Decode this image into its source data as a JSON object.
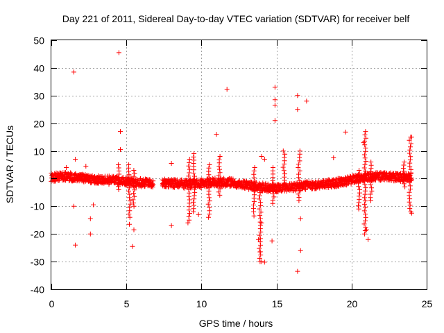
{
  "chart_data": {
    "type": "scatter",
    "title": "Day 221 of 2011, Sidereal Day-to-day VTEC variation (SDTVAR) for receiver belf",
    "xlabel": "GPS time / hours",
    "ylabel": "SDTVAR / TECUs",
    "xlim": [
      0,
      25
    ],
    "ylim": [
      -40,
      50
    ],
    "xticks": [
      0,
      5,
      10,
      15,
      20,
      25
    ],
    "yticks": [
      -40,
      -30,
      -20,
      -10,
      0,
      10,
      20,
      30,
      40,
      50
    ],
    "grid": true,
    "marker": "plus",
    "color": "#ff0000",
    "band": {
      "description": "dense cluster of points",
      "segments": [
        [
          0,
          6.8
        ],
        [
          7.4,
          24.0
        ]
      ],
      "center_profile": [
        [
          0,
          0.5
        ],
        [
          1,
          0.8
        ],
        [
          2,
          0.2
        ],
        [
          3,
          -0.3
        ],
        [
          4,
          -0.6
        ],
        [
          5,
          -1.0
        ],
        [
          6,
          -1.5
        ],
        [
          6.8,
          -1.8
        ],
        [
          7.4,
          -1.5
        ],
        [
          9,
          -2.0
        ],
        [
          10,
          -1.8
        ],
        [
          11,
          -1.2
        ],
        [
          12,
          -1.5
        ],
        [
          13,
          -2.5
        ],
        [
          14,
          -3.0
        ],
        [
          15,
          -3.5
        ],
        [
          16,
          -3.0
        ],
        [
          17,
          -2.5
        ],
        [
          18,
          -2.0
        ],
        [
          19,
          -1.5
        ],
        [
          20,
          -0.5
        ],
        [
          21,
          0.5
        ],
        [
          22,
          0.8
        ],
        [
          23,
          0.5
        ],
        [
          24,
          0.3
        ]
      ],
      "half_width_tecu": 1.5
    },
    "spikes": [
      {
        "x": 4.5,
        "min": -4,
        "max": 5
      },
      {
        "x": 5.2,
        "min": -14,
        "max": 5
      },
      {
        "x": 5.5,
        "min": -10,
        "max": 3
      },
      {
        "x": 9.2,
        "min": -15,
        "max": 7
      },
      {
        "x": 9.5,
        "min": -12,
        "max": 9
      },
      {
        "x": 10.5,
        "min": -14,
        "max": 5
      },
      {
        "x": 11.2,
        "min": -6,
        "max": 8
      },
      {
        "x": 13.5,
        "min": -12,
        "max": 4
      },
      {
        "x": 13.9,
        "min": -30,
        "max": -5
      },
      {
        "x": 14.8,
        "min": -9,
        "max": 4
      },
      {
        "x": 15.5,
        "min": -3,
        "max": 10
      },
      {
        "x": 16.5,
        "min": -8,
        "max": 10
      },
      {
        "x": 20.5,
        "min": -11,
        "max": 3
      },
      {
        "x": 20.9,
        "min": -20,
        "max": 17
      },
      {
        "x": 21.3,
        "min": -8,
        "max": 6
      },
      {
        "x": 23.5,
        "min": -3,
        "max": 6
      },
      {
        "x": 23.9,
        "min": -12,
        "max": 15
      }
    ],
    "outliers": [
      [
        1.5,
        38.5
      ],
      [
        4.5,
        45.5
      ],
      [
        4.6,
        17
      ],
      [
        4.6,
        10.5
      ],
      [
        1.5,
        -10
      ],
      [
        1.6,
        -24
      ],
      [
        2.6,
        -14.5
      ],
      [
        2.6,
        -20
      ],
      [
        2.8,
        -9.5
      ],
      [
        5.2,
        -16.5
      ],
      [
        5.5,
        -18.5
      ],
      [
        5.4,
        -24.5
      ],
      [
        8.0,
        -17
      ],
      [
        8.0,
        5.5
      ],
      [
        9.1,
        -16
      ],
      [
        9.8,
        -13
      ],
      [
        11.0,
        16
      ],
      [
        11.7,
        32.3
      ],
      [
        13.5,
        -13.5
      ],
      [
        13.8,
        -22
      ],
      [
        13.9,
        -26.5
      ],
      [
        14.0,
        -30
      ],
      [
        14.2,
        -30.2
      ],
      [
        14.0,
        -16
      ],
      [
        14.7,
        -22.5
      ],
      [
        14.9,
        33
      ],
      [
        14.9,
        28.5
      ],
      [
        14.9,
        26.5
      ],
      [
        14.9,
        21
      ],
      [
        16.4,
        30
      ],
      [
        16.4,
        25
      ],
      [
        17.0,
        28
      ],
      [
        16.6,
        -26
      ],
      [
        16.6,
        -14.5
      ],
      [
        16.4,
        -33.5
      ],
      [
        19.6,
        16.8
      ],
      [
        21.1,
        -22
      ],
      [
        21.0,
        -18.5
      ],
      [
        24.0,
        -12.5
      ],
      [
        24.0,
        15
      ],
      [
        14.0,
        8
      ],
      [
        14.2,
        7
      ],
      [
        1.0,
        4
      ],
      [
        1.6,
        7
      ],
      [
        2.3,
        4.5
      ],
      [
        18.8,
        7.5
      ],
      [
        20.8,
        13
      ]
    ]
  }
}
